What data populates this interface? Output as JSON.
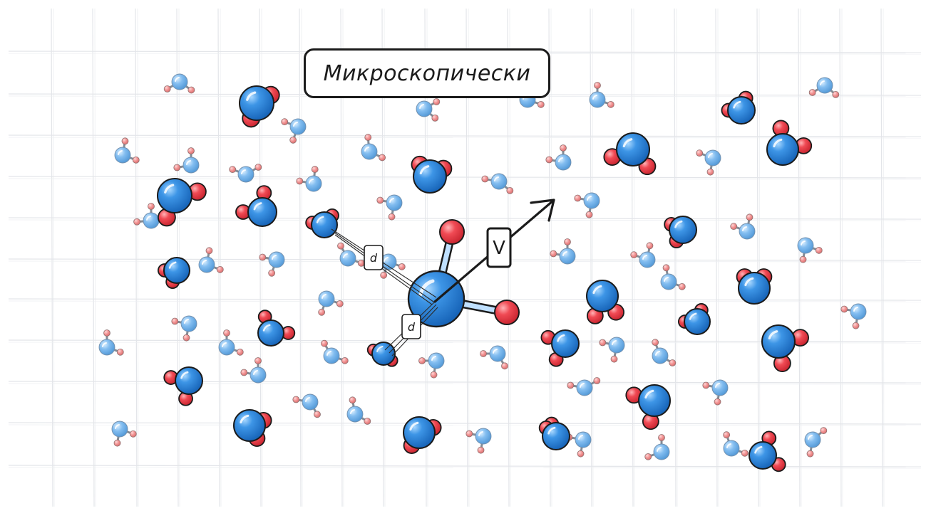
{
  "title": "Микроскопически",
  "labels": {
    "velocity": "V",
    "distance_upper": "d",
    "distance_lower": "d"
  },
  "colors": {
    "oxygen_atom": "#1e7fd6",
    "hydrogen_atom": "#f0454f",
    "small_molecule_body": "#6fb1e8",
    "small_molecule_atom": "#f28b8b",
    "grid_line": "#e4e6ea",
    "outline": "#1b1b1b"
  },
  "icons": {
    "molecule": "water-molecule-icon",
    "arrow": "velocity-arrow-icon"
  }
}
